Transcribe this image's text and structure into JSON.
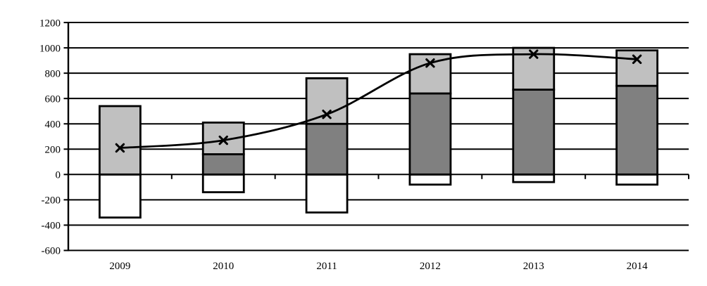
{
  "chart_data": {
    "type": "bar-line-combo",
    "title": "",
    "xlabel": "",
    "ylabel": "",
    "categories": [
      "2009",
      "2010",
      "2011",
      "2012",
      "2013",
      "2014"
    ],
    "series": [
      {
        "name": "negative-white-bar",
        "type": "bar",
        "stack": "main",
        "color": "#FFFFFF",
        "values": [
          -340,
          -140,
          -300,
          -80,
          -60,
          -80
        ]
      },
      {
        "name": "dark-gray-bar",
        "type": "bar",
        "stack": "main",
        "color": "#808080",
        "values": [
          0,
          160,
          400,
          640,
          670,
          700
        ]
      },
      {
        "name": "light-gray-bar",
        "type": "bar",
        "stack": "main",
        "color": "#C0C0C0",
        "values": [
          540,
          250,
          360,
          310,
          330,
          280
        ]
      },
      {
        "name": "x-marker-line",
        "type": "line",
        "color": "#000000",
        "marker": "x",
        "smoothed": true,
        "values": [
          210,
          270,
          475,
          880,
          950,
          910
        ]
      }
    ],
    "ylim": [
      -600,
      1200
    ],
    "ytick_step": 200,
    "yticks": [
      1200,
      1000,
      800,
      600,
      400,
      200,
      0,
      -200,
      -400,
      -600
    ],
    "grid": true,
    "legend": "none",
    "bar_border_color": "#000000",
    "axis_color": "#000000",
    "background_color": "#FFFFFF"
  }
}
